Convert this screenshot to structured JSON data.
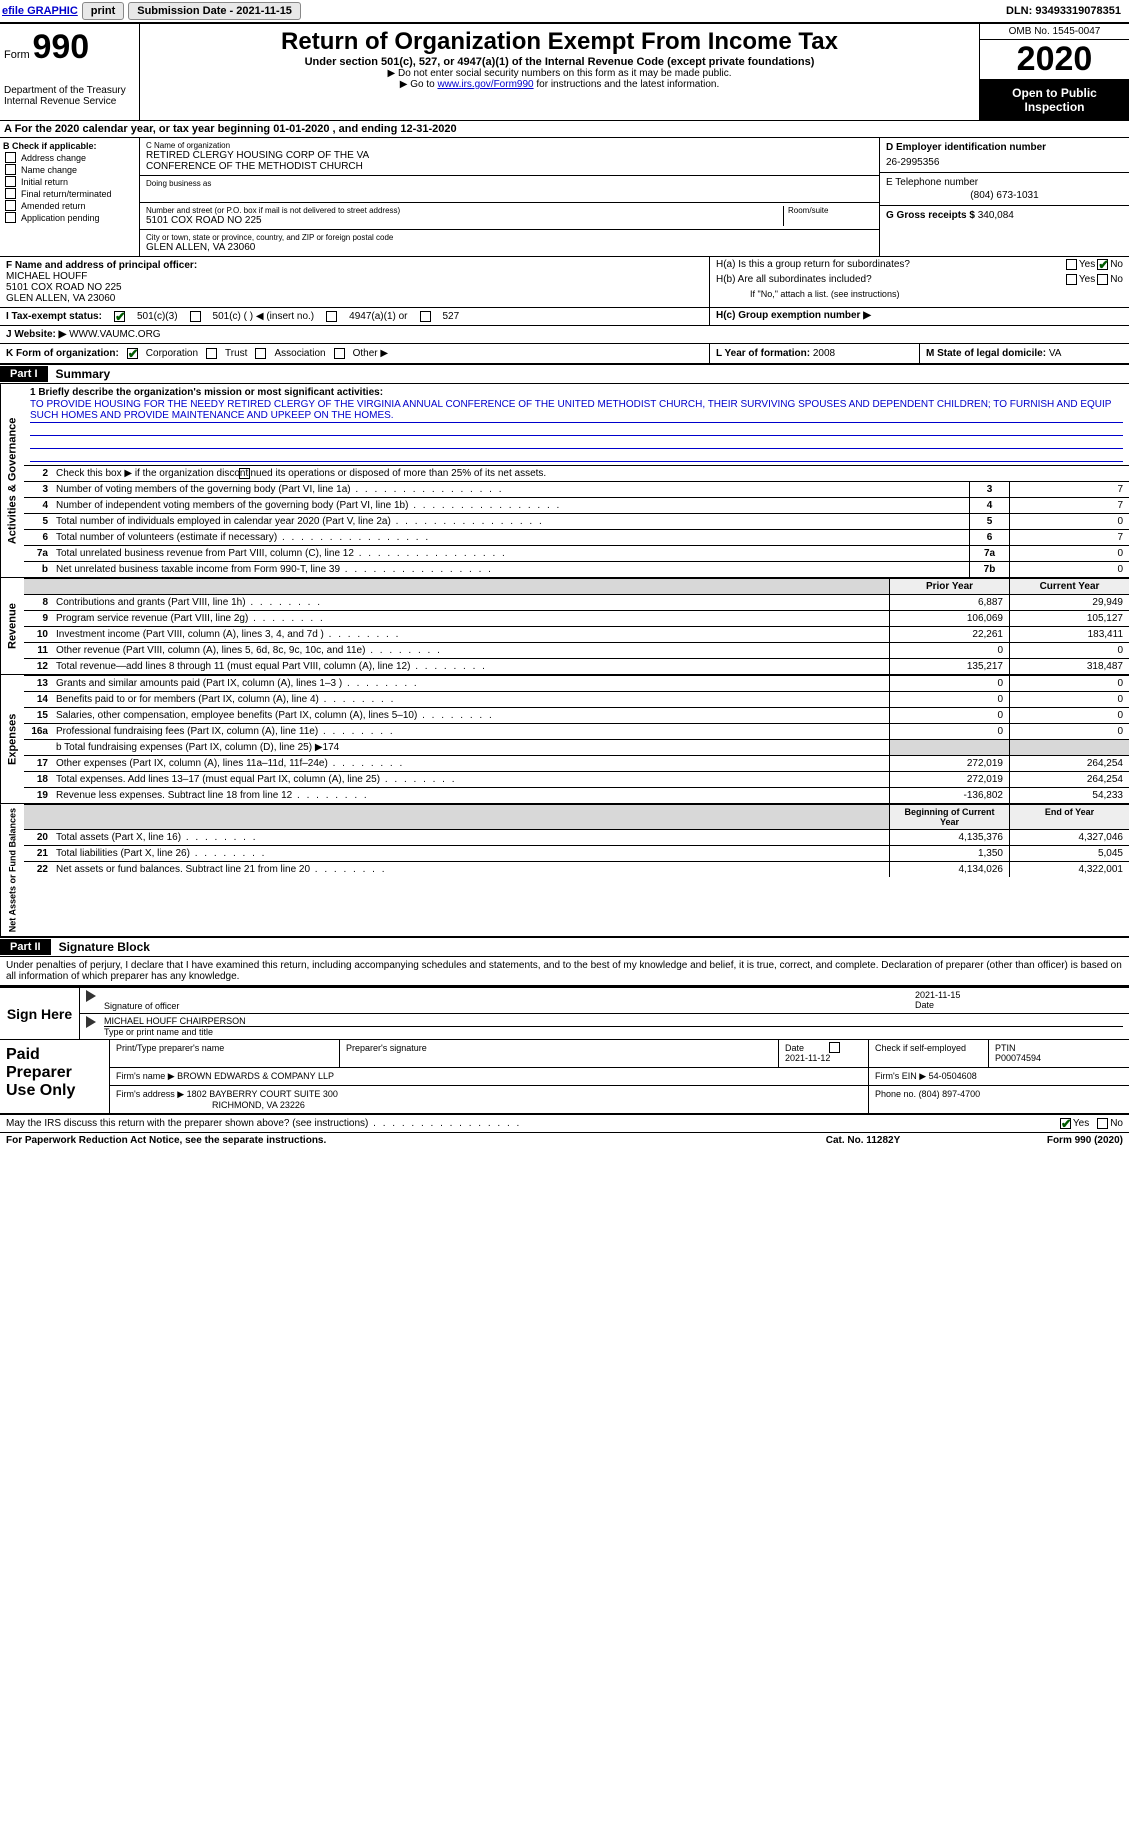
{
  "top": {
    "efile": "efile GRAPHIC",
    "print": "print",
    "sub_label": "Submission Date - 2021-11-15",
    "dln": "DLN: 93493319078351"
  },
  "header": {
    "form_word": "Form",
    "form_no": "990",
    "dept1": "Department of the Treasury",
    "dept2": "Internal Revenue Service",
    "title": "Return of Organization Exempt From Income Tax",
    "subtitle": "Under section 501(c), 527, or 4947(a)(1) of the Internal Revenue Code (except private foundations)",
    "note1": "▶ Do not enter social security numbers on this form as it may be made public.",
    "note2_pre": "▶ Go to ",
    "note2_link": "www.irs.gov/Form990",
    "note2_post": " for instructions and the latest information.",
    "omb": "OMB No. 1545-0047",
    "year": "2020",
    "open": "Open to Public Inspection"
  },
  "period": "A For the 2020 calendar year, or tax year beginning 01-01-2020     , and ending 12-31-2020",
  "boxB": {
    "title": "B Check if applicable:",
    "items": [
      "Address change",
      "Name change",
      "Initial return",
      "Final return/terminated",
      "Amended return",
      "Application pending"
    ]
  },
  "boxC": {
    "name_label": "C Name of organization",
    "name1": "RETIRED CLERGY HOUSING CORP OF THE VA",
    "name2": "CONFERENCE OF THE METHODIST CHURCH",
    "dba_label": "Doing business as",
    "addr_label": "Number and street (or P.O. box if mail is not delivered to street address)",
    "room_label": "Room/suite",
    "addr": "5101 COX ROAD NO 225",
    "city_label": "City or town, state or province, country, and ZIP or foreign postal code",
    "city": "GLEN ALLEN, VA  23060"
  },
  "boxD": {
    "ein_label": "D Employer identification number",
    "ein": "26-2995356",
    "tel_label": "E Telephone number",
    "tel": "(804) 673-1031",
    "gross_label": "G Gross receipts $",
    "gross": "340,084"
  },
  "boxF": {
    "label": "F Name and address of principal officer:",
    "name": "MICHAEL HOUFF",
    "addr1": "5101 COX ROAD NO 225",
    "addr2": "GLEN ALLEN, VA  23060"
  },
  "boxH": {
    "a_label": "H(a)  Is this a group return for subordinates?",
    "b_label": "H(b)  Are all subordinates included?",
    "b_note": "If \"No,\" attach a list. (see instructions)",
    "c_label": "H(c)  Group exemption number ▶",
    "yes": "Yes",
    "no": "No"
  },
  "taxExempt": {
    "label": "I   Tax-exempt status:",
    "c3": "501(c)(3)",
    "c": "501(c) (   ) ◀ (insert no.)",
    "a1": "4947(a)(1) or",
    "s527": "527"
  },
  "website": {
    "label": "J  Website: ▶",
    "value": "WWW.VAUMC.ORG"
  },
  "kform": {
    "label": "K Form of organization:",
    "opts": [
      "Corporation",
      "Trust",
      "Association",
      "Other ▶"
    ],
    "l_label": "L Year of formation:",
    "l_val": "2008",
    "m_label": "M State of legal domicile:",
    "m_val": "VA"
  },
  "part1": {
    "hdr": "Part I",
    "title": "Summary",
    "mission_label": "1  Briefly describe the organization's mission or most significant activities:",
    "mission": "TO PROVIDE HOUSING FOR THE NEEDY RETIRED CLERGY OF THE VIRGINIA ANNUAL CONFERENCE OF THE UNITED METHODIST CHURCH, THEIR SURVIVING SPOUSES AND DEPENDENT CHILDREN; TO FURNISH AND EQUIP SUCH HOMES AND PROVIDE MAINTENANCE AND UPKEEP ON THE HOMES.",
    "line2": "Check this box ▶        if the organization discontinued its operations or disposed of more than 25% of its net assets.",
    "gov_lines": [
      {
        "n": "3",
        "d": "Number of voting members of the governing body (Part VI, line 1a)",
        "box": "3",
        "v": "7"
      },
      {
        "n": "4",
        "d": "Number of independent voting members of the governing body (Part VI, line 1b)",
        "box": "4",
        "v": "7"
      },
      {
        "n": "5",
        "d": "Total number of individuals employed in calendar year 2020 (Part V, line 2a)",
        "box": "5",
        "v": "0"
      },
      {
        "n": "6",
        "d": "Total number of volunteers (estimate if necessary)",
        "box": "6",
        "v": "7"
      },
      {
        "n": "7a",
        "d": "Total unrelated business revenue from Part VIII, column (C), line 12",
        "box": "7a",
        "v": "0"
      },
      {
        "n": "b",
        "d": "Net unrelated business taxable income from Form 990-T, line 39",
        "box": "7b",
        "v": "0"
      }
    ],
    "col_prior": "Prior Year",
    "col_current": "Current Year",
    "rev_lines": [
      {
        "n": "8",
        "d": "Contributions and grants (Part VIII, line 1h)",
        "p": "6,887",
        "c": "29,949"
      },
      {
        "n": "9",
        "d": "Program service revenue (Part VIII, line 2g)",
        "p": "106,069",
        "c": "105,127"
      },
      {
        "n": "10",
        "d": "Investment income (Part VIII, column (A), lines 3, 4, and 7d )",
        "p": "22,261",
        "c": "183,411"
      },
      {
        "n": "11",
        "d": "Other revenue (Part VIII, column (A), lines 5, 6d, 8c, 9c, 10c, and 11e)",
        "p": "0",
        "c": "0"
      },
      {
        "n": "12",
        "d": "Total revenue—add lines 8 through 11 (must equal Part VIII, column (A), line 12)",
        "p": "135,217",
        "c": "318,487"
      }
    ],
    "exp_lines": [
      {
        "n": "13",
        "d": "Grants and similar amounts paid (Part IX, column (A), lines 1–3 )",
        "p": "0",
        "c": "0"
      },
      {
        "n": "14",
        "d": "Benefits paid to or for members (Part IX, column (A), line 4)",
        "p": "0",
        "c": "0"
      },
      {
        "n": "15",
        "d": "Salaries, other compensation, employee benefits (Part IX, column (A), lines 5–10)",
        "p": "0",
        "c": "0"
      },
      {
        "n": "16a",
        "d": "Professional fundraising fees (Part IX, column (A), line 11e)",
        "p": "0",
        "c": "0"
      }
    ],
    "line16b": "b  Total fundraising expenses (Part IX, column (D), line 25) ▶174",
    "exp_lines2": [
      {
        "n": "17",
        "d": "Other expenses (Part IX, column (A), lines 11a–11d, 11f–24e)",
        "p": "272,019",
        "c": "264,254"
      },
      {
        "n": "18",
        "d": "Total expenses. Add lines 13–17 (must equal Part IX, column (A), line 25)",
        "p": "272,019",
        "c": "264,254"
      },
      {
        "n": "19",
        "d": "Revenue less expenses. Subtract line 18 from line 12",
        "p": "-136,802",
        "c": "54,233"
      }
    ],
    "col_boy": "Beginning of Current Year",
    "col_eoy": "End of Year",
    "na_lines": [
      {
        "n": "20",
        "d": "Total assets (Part X, line 16)",
        "p": "4,135,376",
        "c": "4,327,046"
      },
      {
        "n": "21",
        "d": "Total liabilities (Part X, line 26)",
        "p": "1,350",
        "c": "5,045"
      },
      {
        "n": "22",
        "d": "Net assets or fund balances. Subtract line 21 from line 20",
        "p": "4,134,026",
        "c": "4,322,001"
      }
    ],
    "side_gov": "Activities & Governance",
    "side_rev": "Revenue",
    "side_exp": "Expenses",
    "side_na": "Net Assets or Fund Balances"
  },
  "part2": {
    "hdr": "Part II",
    "title": "Signature Block",
    "decl": "Under penalties of perjury, I declare that I have examined this return, including accompanying schedules and statements, and to the best of my knowledge and belief, it is true, correct, and complete. Declaration of preparer (other than officer) is based on all information of which preparer has any knowledge."
  },
  "sign": {
    "label": "Sign Here",
    "sig_label": "Signature of officer",
    "date_label": "Date",
    "date": "2021-11-15",
    "name": "MICHAEL HOUFF CHAIRPERSON",
    "name_label": "Type or print name and title"
  },
  "prep": {
    "label": "Paid Preparer Use Only",
    "h1": "Print/Type preparer's name",
    "h2": "Preparer's signature",
    "h3": "Date",
    "date": "2021-11-12",
    "h4": "Check         if self-employed",
    "h5": "PTIN",
    "ptin": "P00074594",
    "firm_label": "Firm's name     ▶",
    "firm": "BROWN EDWARDS & COMPANY LLP",
    "ein_label": "Firm's EIN ▶",
    "ein": "54-0504608",
    "addr_label": "Firm's address ▶",
    "addr1": "1802 BAYBERRY COURT SUITE 300",
    "addr2": "RICHMOND, VA  23226",
    "phone_label": "Phone no.",
    "phone": "(804) 897-4700"
  },
  "footer": {
    "discuss": "May the IRS discuss this return with the preparer shown above? (see instructions)",
    "yes": "Yes",
    "no": "No",
    "pra": "For Paperwork Reduction Act Notice, see the separate instructions.",
    "cat": "Cat. No. 11282Y",
    "form": "Form 990 (2020)"
  }
}
